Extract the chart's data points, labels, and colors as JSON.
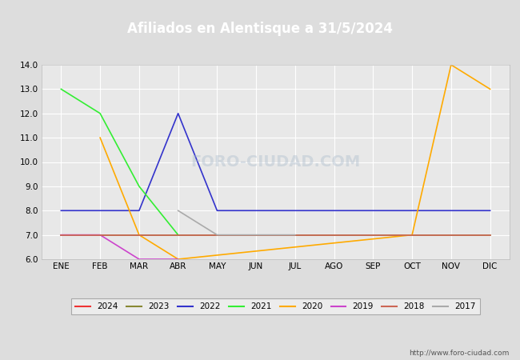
{
  "title": "Afiliados en Alentisque a 31/5/2024",
  "title_color": "#ffffff",
  "title_bg_color": "#5599cc",
  "months": [
    "ENE",
    "FEB",
    "MAR",
    "ABR",
    "MAY",
    "JUN",
    "JUL",
    "AGO",
    "SEP",
    "OCT",
    "NOV",
    "DIC"
  ],
  "month_indices": [
    1,
    2,
    3,
    4,
    5,
    6,
    7,
    8,
    9,
    10,
    11,
    12
  ],
  "ylim": [
    6.0,
    14.0
  ],
  "yticks": [
    6.0,
    7.0,
    8.0,
    9.0,
    10.0,
    11.0,
    12.0,
    13.0,
    14.0
  ],
  "series": {
    "2024": {
      "color": "#ee3333",
      "data": {
        "1": 7
      }
    },
    "2023": {
      "color": "#888833",
      "data": {
        "1": 7,
        "2": 7,
        "3": 7,
        "4": 7,
        "5": 7,
        "6": 7,
        "7": 7,
        "8": 7,
        "9": 7,
        "10": 7,
        "11": 7,
        "12": 7
      }
    },
    "2022": {
      "color": "#3333cc",
      "data": {
        "1": 8,
        "2": 8,
        "3": 8,
        "4": 12,
        "5": 8,
        "6": 8,
        "7": 8,
        "8": 8,
        "9": 8,
        "10": 8,
        "11": 8,
        "12": 8
      }
    },
    "2021": {
      "color": "#33ee33",
      "data": {
        "1": 13,
        "2": 12,
        "3": 9,
        "4": 7
      }
    },
    "2020": {
      "color": "#ffaa00",
      "data": {
        "2": 11,
        "3": 7,
        "4": 6,
        "10": 7,
        "11": 14,
        "12": 13
      }
    },
    "2019": {
      "color": "#cc44cc",
      "data": {
        "1": 7,
        "2": 7,
        "3": 6,
        "4": 6
      }
    },
    "2018": {
      "color": "#cc6655",
      "data": {
        "1": 7,
        "2": 7,
        "3": 7,
        "4": 7,
        "5": 7,
        "6": 7,
        "7": 7,
        "8": 7,
        "9": 7,
        "10": 7,
        "11": 7,
        "12": 7
      }
    },
    "2017": {
      "color": "#aaaaaa",
      "data": {
        "4": 8,
        "5": 7,
        "6": 7,
        "7": 7
      }
    }
  },
  "url_text": "http://www.foro-ciudad.com",
  "bg_color": "#dddddd",
  "plot_bg_color": "#e8e8e8",
  "grid_color": "#ffffff"
}
